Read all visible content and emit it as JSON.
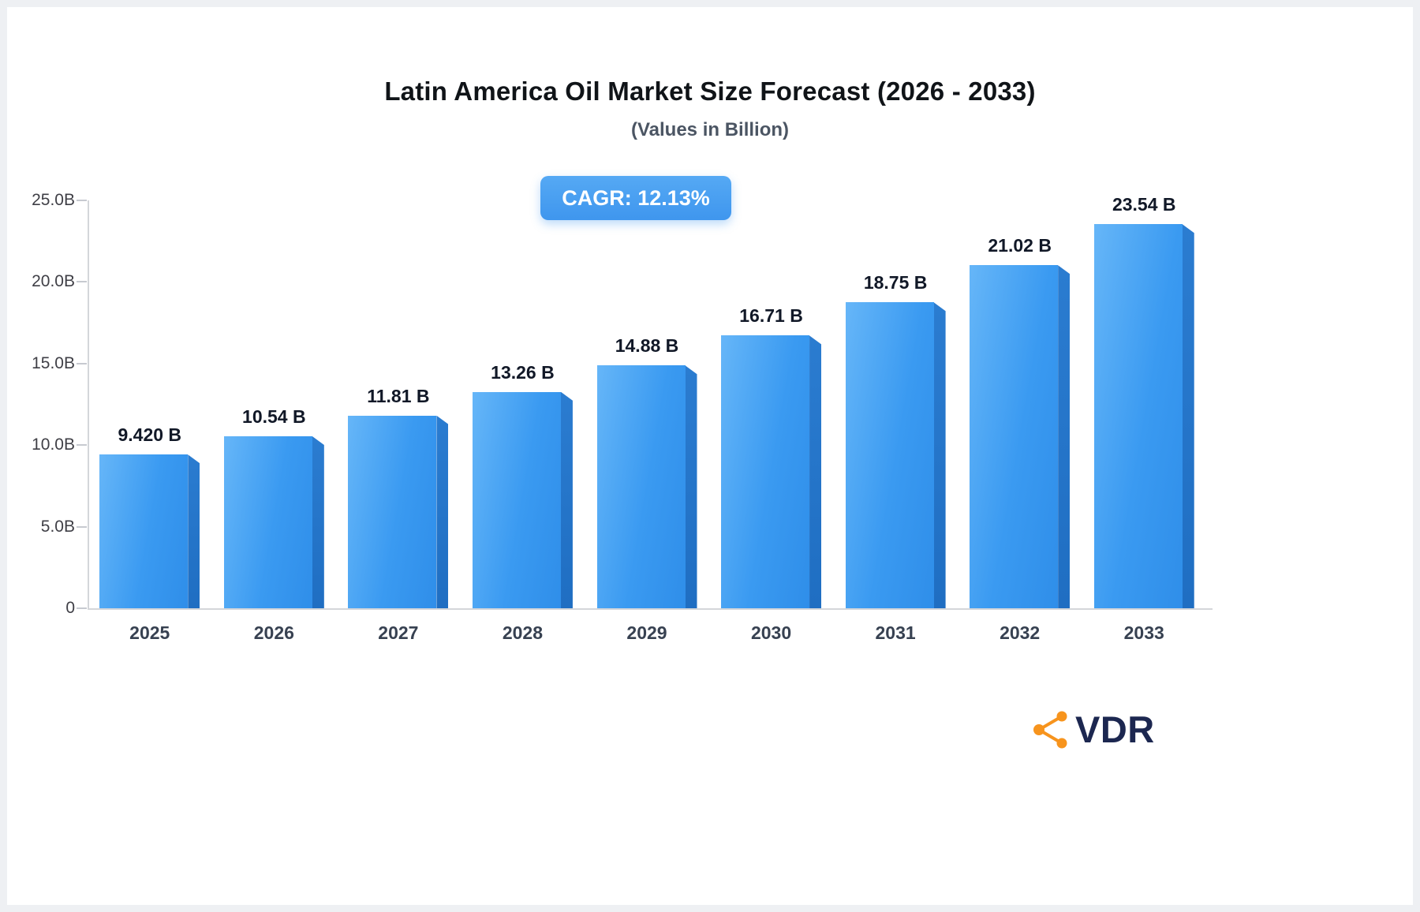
{
  "header": {
    "title": "Latin America Oil Market Size Forecast (2026 - 2033)",
    "subtitle": "(Values in Billion)",
    "badge": "CAGR: 12.13%"
  },
  "chart_data": {
    "type": "bar",
    "title": "Latin America Oil Market Size Forecast (2026 - 2033)",
    "subtitle": "(Values in Billion)",
    "annotation": "CAGR: 12.13%",
    "categories": [
      "2025",
      "2026",
      "2027",
      "2028",
      "2029",
      "2030",
      "2031",
      "2032",
      "2033"
    ],
    "values": [
      9.42,
      10.54,
      11.81,
      13.26,
      14.88,
      16.71,
      18.75,
      21.02,
      23.54
    ],
    "value_labels": [
      "9.420 B",
      "10.54 B",
      "11.81 B",
      "13.26 B",
      "14.88 B",
      "16.71 B",
      "18.75 B",
      "21.02 B",
      "23.54 B"
    ],
    "xlabel": "",
    "ylabel": "",
    "ylim": [
      0,
      25
    ],
    "grid": false,
    "legend": false,
    "yticks": [
      {
        "value": 0,
        "label": "0"
      },
      {
        "value": 5,
        "label": "5.0B"
      },
      {
        "value": 10,
        "label": "10.0B"
      },
      {
        "value": 15,
        "label": "15.0B"
      },
      {
        "value": 20,
        "label": "20.0B"
      },
      {
        "value": 25,
        "label": "25.0B"
      }
    ],
    "colors": {
      "bar_face": "#3a9af1",
      "bar_side": "#1f6ec2",
      "badge_background": "#3f96ee",
      "badge_text": "#ffffff",
      "axis": "#d4d6da",
      "label_text": "#111827"
    }
  },
  "branding": {
    "logo_text": "VDR",
    "logo_text_color": "#1c2750",
    "logo_icon": "network-nodes-icon",
    "logo_icon_color": "#f7941d"
  }
}
